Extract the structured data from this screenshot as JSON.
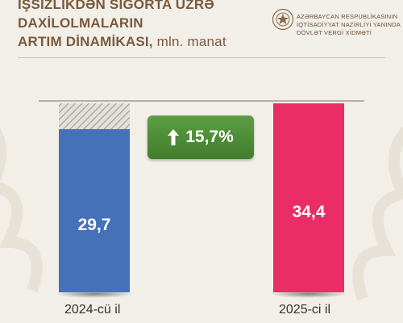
{
  "title": {
    "line1": "İŞSİZLİKDƏN SIĞORTA ÜZRƏ",
    "line2": "DAXİLOLMALARIN",
    "line3": "ARTIM DİNAMİKASI,",
    "unit": "mln. manat"
  },
  "org": {
    "line1": "AZƏRBAYCAN RESPUBLİKASININ",
    "line2": "İQTİSADİYYAT NAZİRLİYİ YANINDA",
    "line3": "DÖVLƏT VERGİ XİDMƏTİ"
  },
  "growth_badge": {
    "text": "15,7%"
  },
  "colors": {
    "bar_2024": "#4571b9",
    "bar_2025": "#ea2d66",
    "badge": "#4e8f39",
    "title": "#7a5a3c"
  },
  "icons": {
    "badge_icon": "up-arrow-icon",
    "logo": "emblem-icon"
  },
  "chart_data": {
    "type": "bar",
    "title": "İŞSİZLİKDƏN SIĞORTA ÜZRƏ DAXİLOLMALARIN ARTIM DİNAMİKASI, mln. manat",
    "categories": [
      "2024-cü il",
      "2025-ci il"
    ],
    "values": [
      29.7,
      34.4
    ],
    "data_labels": [
      "29,7",
      "34,4"
    ],
    "growth_percent": 15.7,
    "ylim": [
      0,
      34.4
    ],
    "grid": false,
    "legend": "none"
  }
}
